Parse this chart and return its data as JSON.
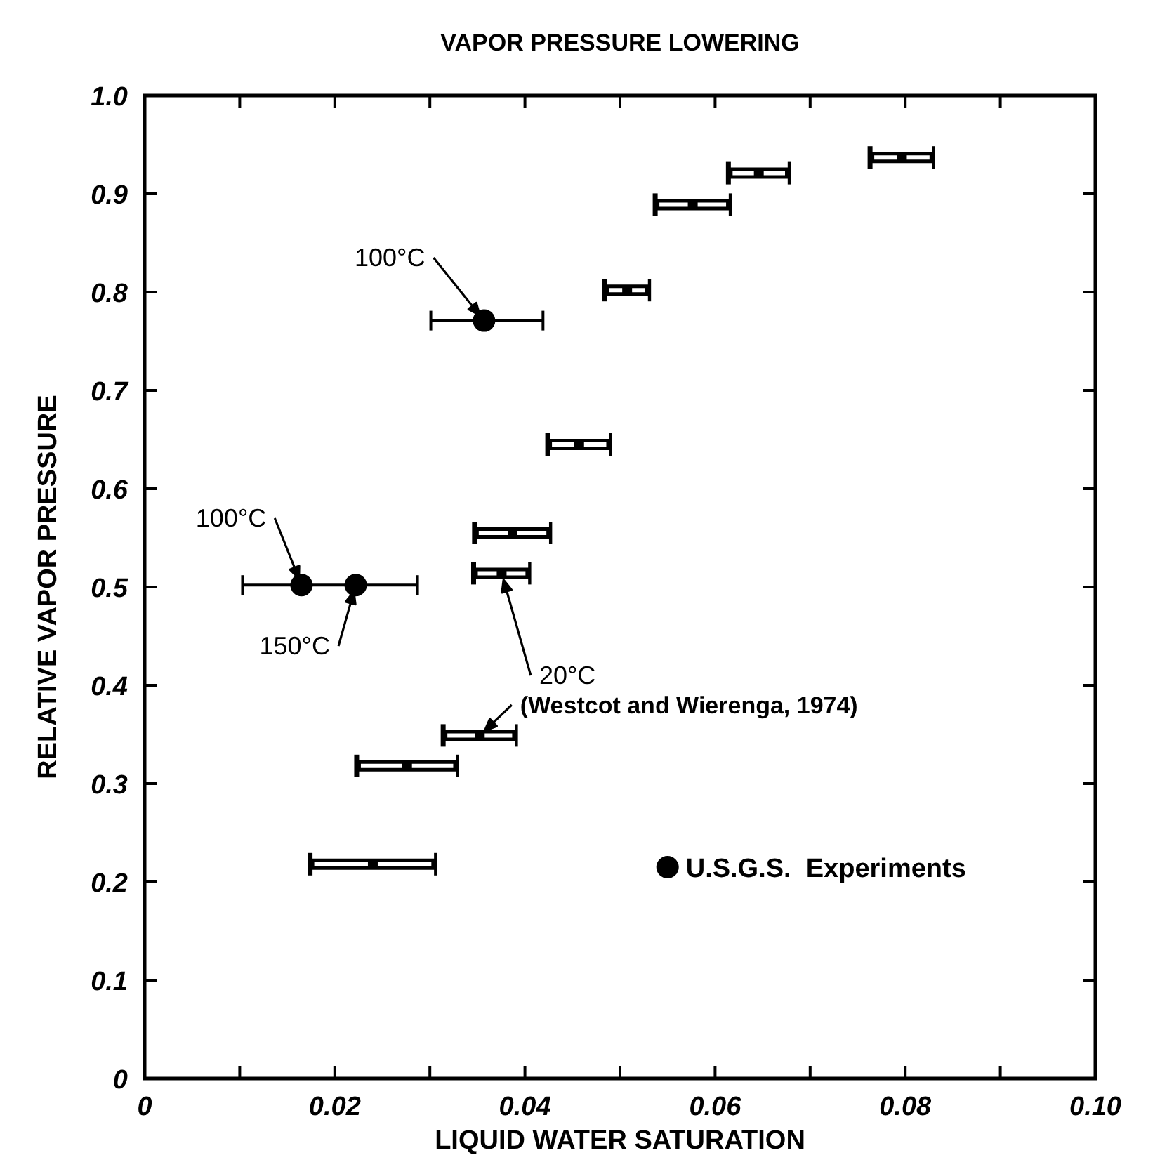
{
  "chart_data": {
    "type": "scatter",
    "title": "VAPOR PRESSURE LOWERING",
    "xlabel": "LIQUID WATER SATURATION",
    "ylabel": "RELATIVE VAPOR PRESSURE",
    "xlim": [
      0,
      0.1
    ],
    "ylim": [
      0,
      1
    ],
    "xticks": [
      0,
      {
        "value": 0.01,
        "label": null
      },
      {
        "value": 0.02,
        "label": "0.02"
      },
      {
        "value": 0.03,
        "label": null
      },
      {
        "value": 0.04,
        "label": "0.04"
      },
      {
        "value": 0.05,
        "label": null
      },
      {
        "value": 0.06,
        "label": "0.06"
      },
      {
        "value": 0.07,
        "label": null
      },
      {
        "value": 0.08,
        "label": "0.08"
      },
      {
        "value": 0.09,
        "label": null
      },
      {
        "value": 0.1,
        "label": "0.10"
      }
    ],
    "yticks": [
      0,
      0.1,
      0.2,
      0.3,
      0.4,
      0.5,
      0.6,
      0.7,
      0.8,
      0.9,
      {
        "value": 1,
        "label": "1.0"
      }
    ],
    "legend": "bottom right",
    "series": [
      {
        "color": "#000000",
        "marker": "square",
        "x": [
          0.024,
          0.0276,
          0.03525,
          0.03755,
          0.0387,
          0.0457,
          0.05075,
          0.05765,
          0.0646,
          0.07965
        ],
        "values": [
          0.218,
          0.318,
          0.349,
          0.514,
          0.555,
          0.645,
          0.802,
          0.889,
          0.921,
          0.937
        ],
        "xerrors": [
          [
            0.0174,
            0.0306
          ],
          [
            0.0223,
            0.0329
          ],
          [
            0.0314,
            0.0391
          ],
          [
            0.0346,
            0.0405
          ],
          [
            0.0347,
            0.0427
          ],
          [
            0.0424,
            0.049
          ],
          [
            0.0484,
            0.0531
          ],
          [
            0.0537,
            0.0616
          ],
          [
            0.0614,
            0.0678
          ],
          [
            0.0763,
            0.083
          ]
        ]
      },
      {
        "name": "U.S.G.S.  Experiments",
        "color": "#000000",
        "marker": "circle",
        "x": [
          0.0357,
          0.0165,
          0.0222
        ],
        "values": [
          0.771,
          0.502,
          0.502
        ],
        "xerrors": [
          [
            0.0301,
            0.0419
          ],
          [
            0.0103,
            0.0287
          ],
          null
        ]
      }
    ],
    "annotations": [
      {
        "text": "100°C",
        "x": 0.0357,
        "y": 0.771
      },
      {
        "text": "100°C",
        "x": 0.0165,
        "y": 0.502
      },
      {
        "text": "150°C",
        "x": 0.0222,
        "y": 0.502
      },
      {
        "text": "20°C",
        "x": 0.03755,
        "y": 0.514
      },
      {
        "text": "(Westcot and Wierenga, 1974)",
        "x": 0.03525,
        "y": 0.349
      }
    ]
  }
}
